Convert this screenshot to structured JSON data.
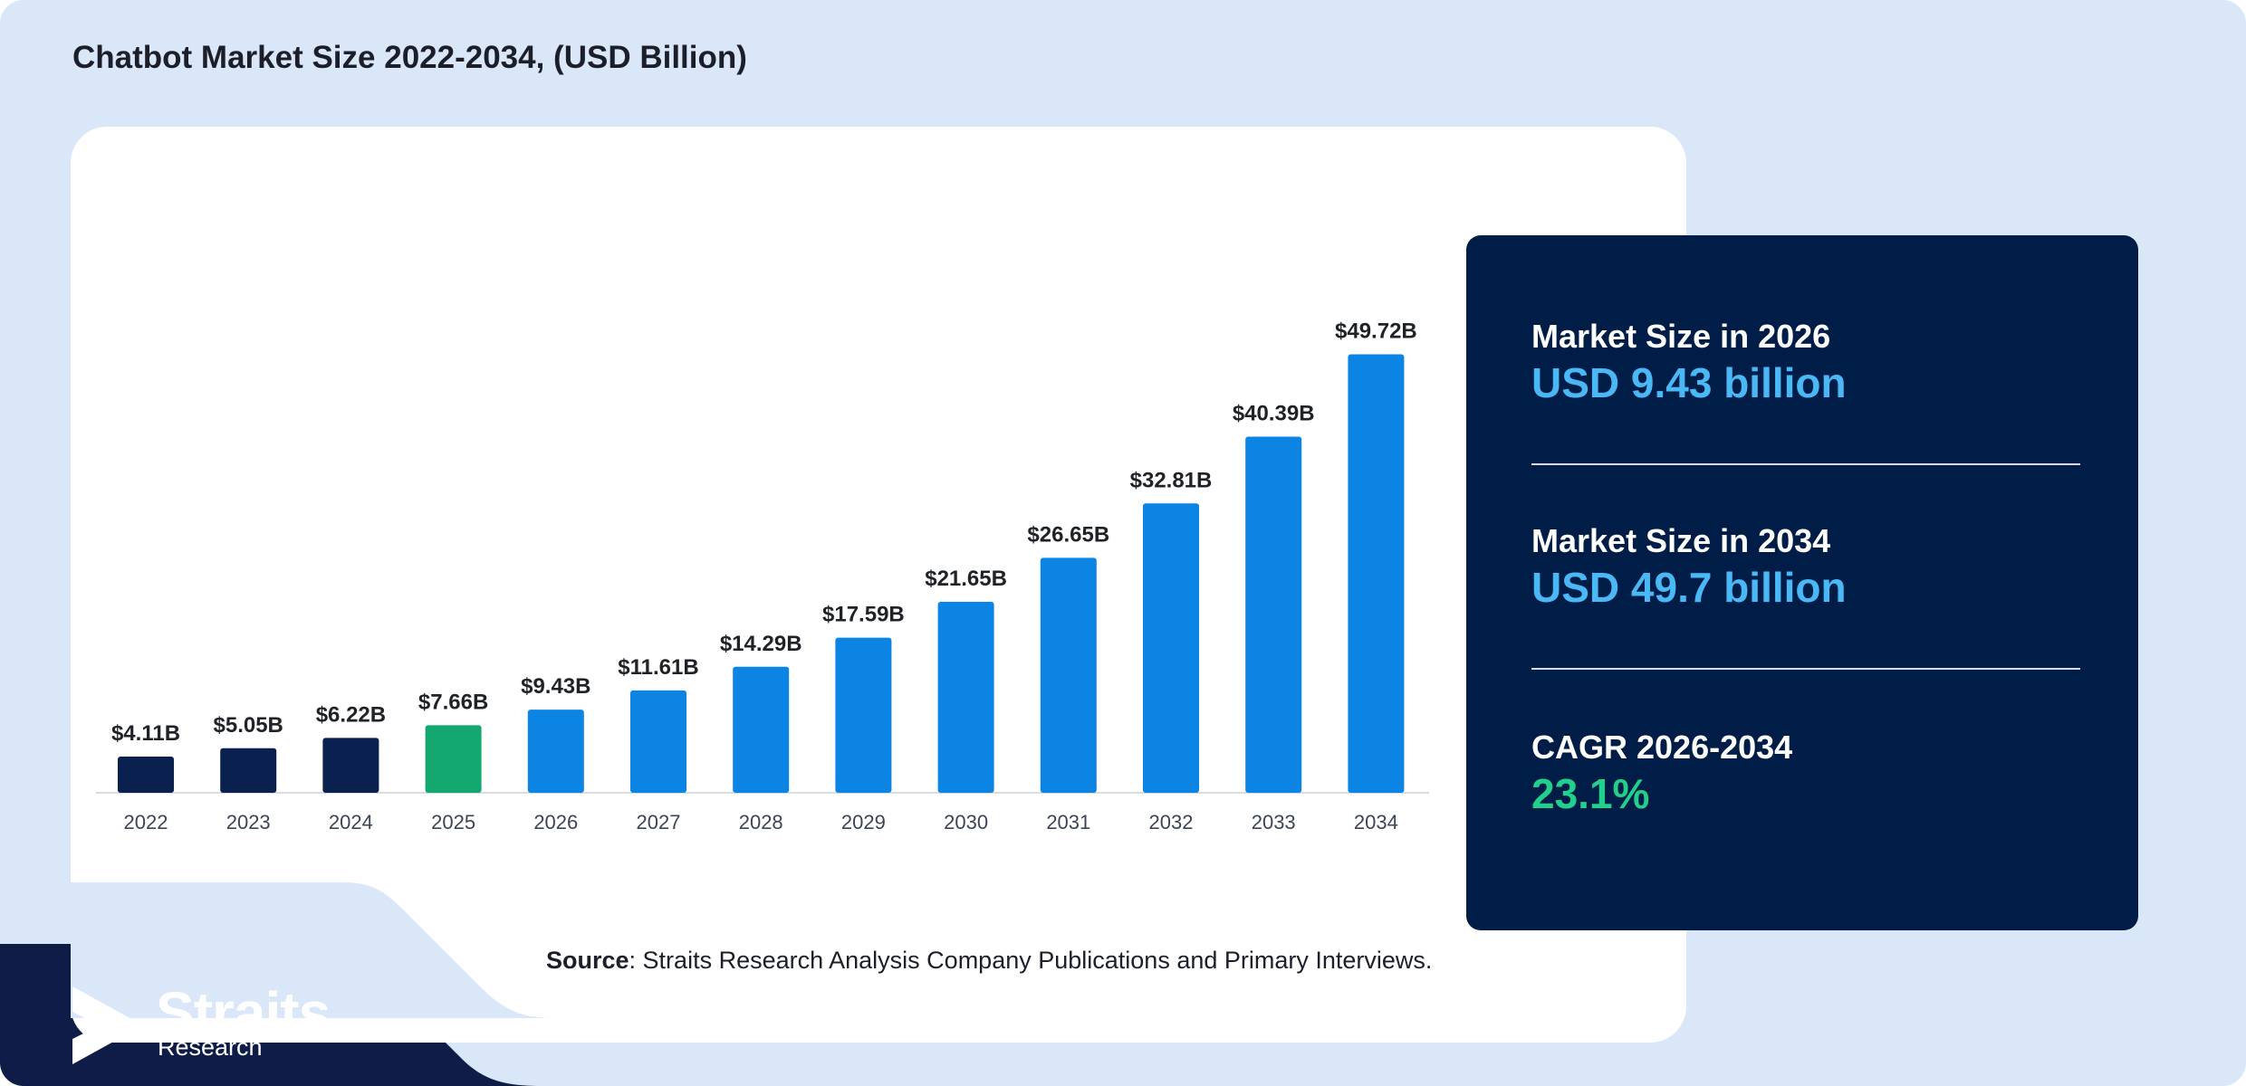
{
  "header": {
    "title": "Chatbot Market Size 2022-2034, (USD Billion)"
  },
  "chart_data": {
    "type": "bar",
    "title": "Chatbot Market Size 2022-2034, (USD Billion)",
    "xlabel": "",
    "ylabel": "",
    "grid": false,
    "legend": "none",
    "categories": [
      "2022",
      "2023",
      "2024",
      "2025",
      "2026",
      "2027",
      "2028",
      "2029",
      "2030",
      "2031",
      "2032",
      "2033",
      "2034"
    ],
    "values": [
      4.11,
      5.05,
      6.22,
      7.66,
      9.43,
      11.61,
      14.29,
      17.59,
      21.65,
      26.65,
      32.81,
      40.39,
      49.72
    ],
    "data_labels": [
      "$4.11B",
      "$5.05B",
      "$6.22B",
      "$7.66B",
      "$9.43B",
      "$11.61B",
      "$14.29B",
      "$17.59B",
      "$21.65B",
      "$26.65B",
      "$32.81B",
      "$40.39B",
      "$49.72B"
    ],
    "bar_colors": [
      "#0a2150",
      "#0a2150",
      "#0a2150",
      "#13a870",
      "#0b84e4",
      "#0b84e4",
      "#0b84e4",
      "#0b84e4",
      "#0b84e4",
      "#0b84e4",
      "#0b84e4",
      "#0b84e4",
      "#0b84e4"
    ],
    "ylim": [
      0,
      50
    ]
  },
  "stats": [
    {
      "label": "Market Size in 2026",
      "value": "USD 9.43 billion",
      "color": "#4ab8f5"
    },
    {
      "label": "Market Size in 2034",
      "value": "USD 49.7 billion",
      "color": "#4ab8f5"
    },
    {
      "label": "CAGR 2026-2034",
      "value": "23.1%",
      "color": "#21d08a"
    }
  ],
  "source": {
    "prefix": "Source",
    "text": ": Straits Research Analysis Company Publications and Primary Interviews."
  },
  "logo": {
    "name": "Straits",
    "sub": "Research"
  },
  "colors": {
    "background": "#dae7f9",
    "card": "#001d47",
    "footer": "#0f1c47",
    "axis": "#d9dde3"
  }
}
